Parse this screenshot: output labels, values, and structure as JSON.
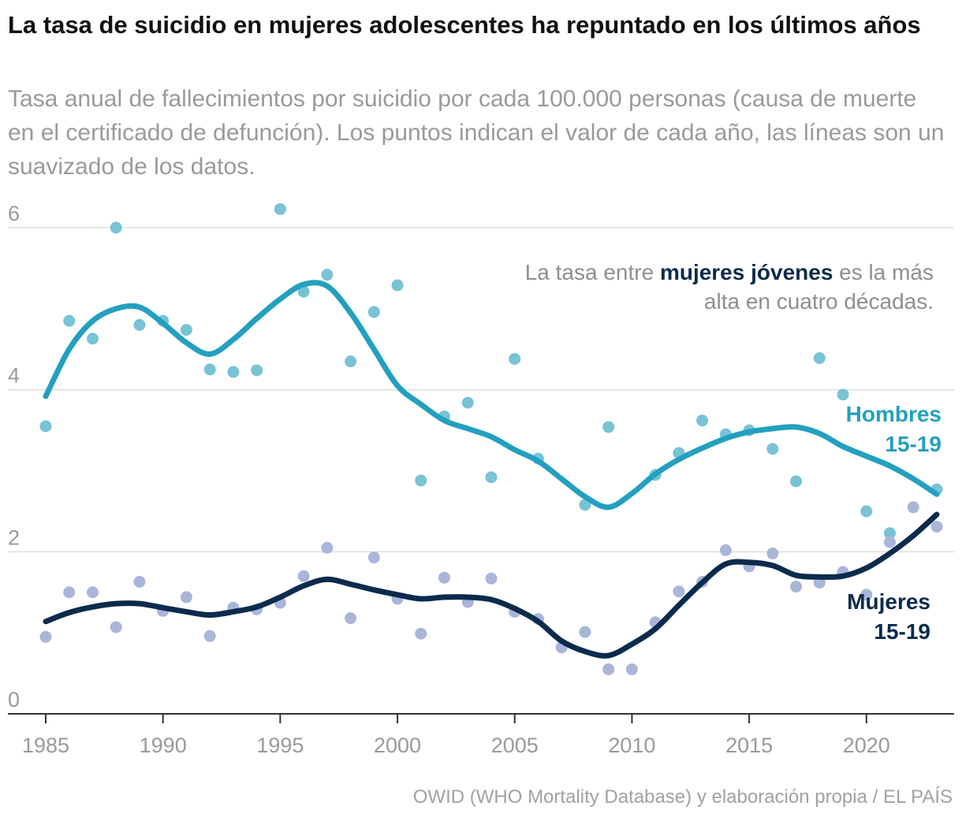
{
  "title": "La tasa de suicidio en mujeres adolescentes ha repuntado en los últimos años",
  "subtitle": "Tasa anual de fallecimientos por suicidio por cada 100.000 personas (causa de muerte en el certificado de defunción). Los puntos indican el valor de cada año, las líneas son un suavizado de los datos.",
  "source": "OWID (WHO Mortality Database) y elaboración propia / EL PAÍS",
  "annotation": {
    "before": "La tasa entre ",
    "strong": "mujeres jóvenes",
    "after": " es la más",
    "line2": "alta en cuatro décadas."
  },
  "colors": {
    "hombres_line": "#23a0bf",
    "hombres_points": "#78c3d6",
    "mujeres_line": "#0b2b4d",
    "mujeres_points": "#a9b6da",
    "grid": "#dddddd",
    "axis": "#333333"
  },
  "chart_data": {
    "type": "scatter",
    "title": "La tasa de suicidio en mujeres adolescentes ha repuntado en los últimos años",
    "xlabel": "",
    "ylabel": "",
    "xlim": [
      1985,
      2023
    ],
    "ylim": [
      0,
      6
    ],
    "grid": true,
    "x_ticks": [
      "1985",
      "1990",
      "1995",
      "2000",
      "2005",
      "2010",
      "2015",
      "2020"
    ],
    "y_ticks": [
      "0",
      "2",
      "4",
      "6"
    ],
    "x": [
      1985,
      1986,
      1987,
      1988,
      1989,
      1990,
      1991,
      1992,
      1993,
      1994,
      1995,
      1996,
      1997,
      1998,
      1999,
      2000,
      2001,
      2002,
      2003,
      2004,
      2005,
      2006,
      2007,
      2008,
      2009,
      2010,
      2011,
      2012,
      2013,
      2014,
      2015,
      2016,
      2017,
      2018,
      2019,
      2020,
      2021,
      2022,
      2023
    ],
    "series": [
      {
        "name": "Hombres",
        "label_line1": "Hombres",
        "label_line2": "15-19",
        "points": [
          3.55,
          4.85,
          4.63,
          6.0,
          4.8,
          4.85,
          4.74,
          4.25,
          4.22,
          4.24,
          6.23,
          5.21,
          5.42,
          4.35,
          4.96,
          5.29,
          2.88,
          3.67,
          3.84,
          2.92,
          4.38,
          3.15,
          null,
          2.58,
          3.54,
          null,
          2.95,
          3.22,
          3.62,
          3.45,
          3.5,
          3.27,
          2.87,
          4.39,
          3.94,
          2.5,
          2.23,
          null,
          2.77
        ],
        "smooth": [
          3.92,
          4.5,
          4.85,
          5.0,
          5.02,
          4.82,
          4.58,
          4.44,
          4.62,
          4.88,
          5.12,
          5.3,
          5.28,
          4.95,
          4.5,
          4.05,
          3.82,
          3.62,
          3.52,
          3.42,
          3.26,
          3.12,
          2.9,
          2.68,
          2.55,
          2.72,
          2.96,
          3.14,
          3.28,
          3.4,
          3.48,
          3.52,
          3.54,
          3.46,
          3.3,
          3.18,
          3.06,
          2.9,
          2.71
        ]
      },
      {
        "name": "Mujeres",
        "label_line1": "Mujeres",
        "label_line2": "15-19",
        "points": [
          0.95,
          1.5,
          1.5,
          1.07,
          1.63,
          1.27,
          1.44,
          0.96,
          1.31,
          1.29,
          1.37,
          1.7,
          2.05,
          1.18,
          1.93,
          1.42,
          0.99,
          1.68,
          1.38,
          1.67,
          1.26,
          1.17,
          0.82,
          1.01,
          0.55,
          0.55,
          1.13,
          1.51,
          1.63,
          2.02,
          1.82,
          1.98,
          1.57,
          1.62,
          1.75,
          1.47,
          2.12,
          2.55,
          2.31
        ],
        "smooth": [
          1.14,
          1.25,
          1.32,
          1.36,
          1.36,
          1.31,
          1.26,
          1.22,
          1.26,
          1.32,
          1.44,
          1.58,
          1.66,
          1.6,
          1.53,
          1.47,
          1.42,
          1.44,
          1.44,
          1.41,
          1.3,
          1.14,
          0.9,
          0.77,
          0.72,
          0.86,
          1.05,
          1.34,
          1.62,
          1.85,
          1.87,
          1.83,
          1.71,
          1.69,
          1.7,
          1.8,
          1.98,
          2.2,
          2.46
        ]
      }
    ]
  }
}
